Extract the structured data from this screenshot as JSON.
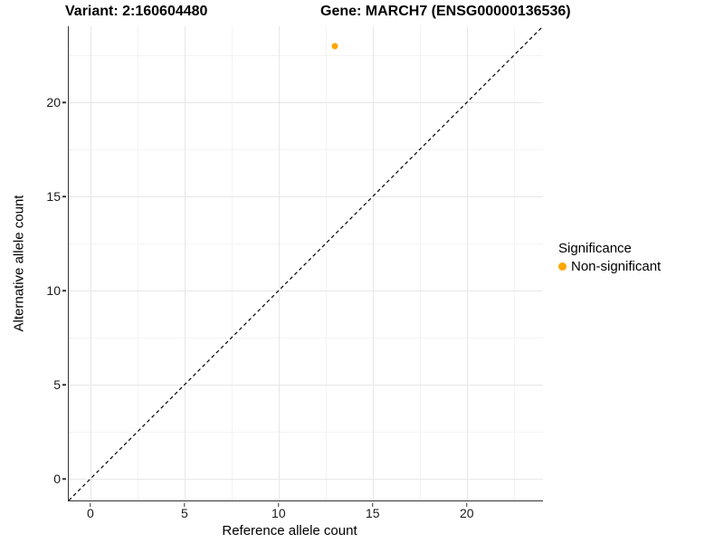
{
  "chart_data": {
    "type": "scatter",
    "titles": {
      "left": "Variant: 2:160604480",
      "right": "Gene: MARCH7 (ENSG00000136536)"
    },
    "xlabel": "Reference allele count",
    "ylabel": "Alternative allele count",
    "xlim": [
      -1.15,
      24.05
    ],
    "ylim": [
      -1.15,
      24.05
    ],
    "x_ticks": [
      0,
      5,
      10,
      15,
      20
    ],
    "y_ticks": [
      0,
      5,
      10,
      15,
      20
    ],
    "x_minor_ticks": [
      2.5,
      7.5,
      12.5,
      17.5,
      22.5
    ],
    "y_minor_ticks": [
      2.5,
      7.5,
      12.5,
      17.5,
      22.5
    ],
    "grid": "major+minor",
    "points": [
      {
        "x": 13,
        "y": 23,
        "series": "Non-significant"
      }
    ],
    "reference_line": {
      "slope": 1,
      "intercept": 0,
      "linetype": "dashed",
      "color": "#000000"
    },
    "legend": {
      "title": "Significance",
      "position": "right",
      "items": [
        {
          "label": "Non-significant",
          "color": "#FFA500"
        }
      ]
    }
  }
}
